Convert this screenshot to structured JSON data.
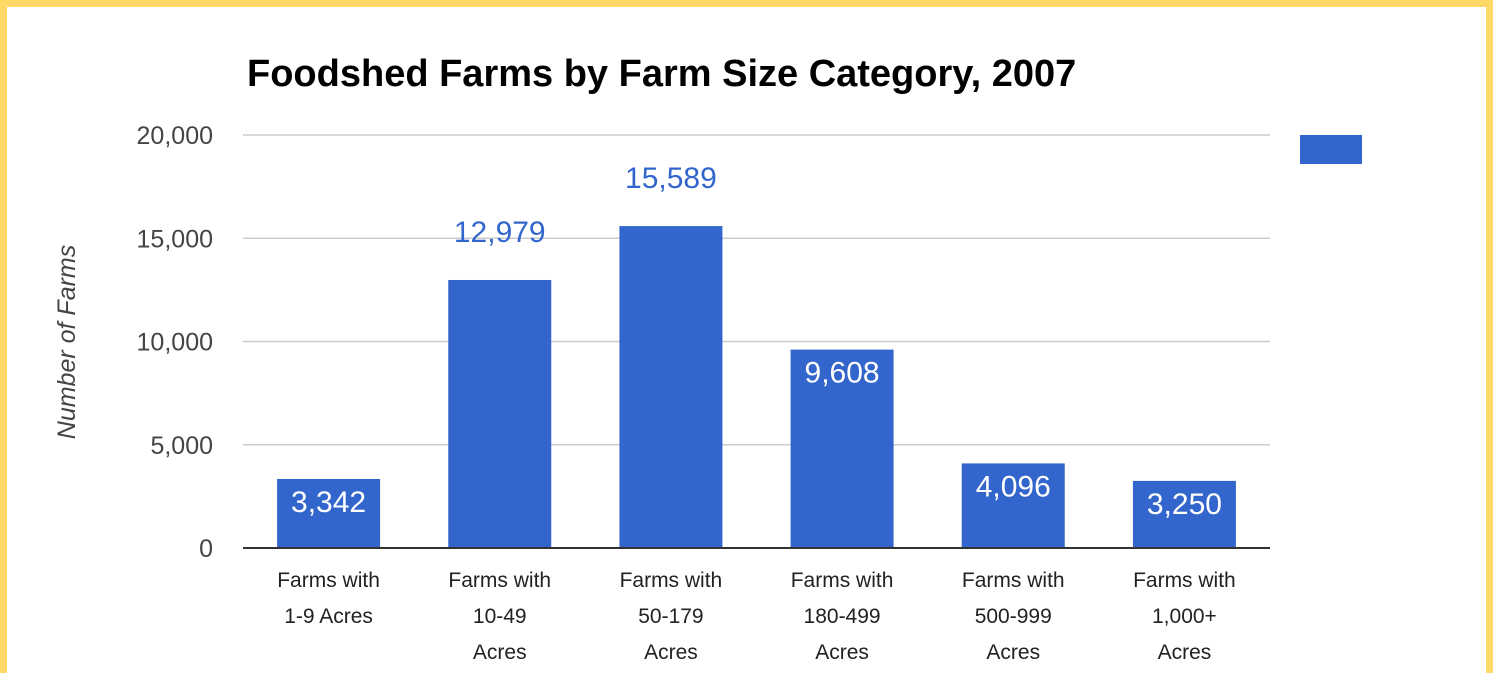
{
  "chart_data": {
    "type": "bar",
    "title": "Foodshed Farms by Farm Size Category, 2007",
    "ylabel": "Number of Farms",
    "xlabel": "",
    "ylim": [
      0,
      20000
    ],
    "yticks": [
      {
        "value": 0,
        "label": "0"
      },
      {
        "value": 5000,
        "label": "5,000"
      },
      {
        "value": 10000,
        "label": "10,000"
      },
      {
        "value": 15000,
        "label": "15,000"
      },
      {
        "value": 20000,
        "label": "20,000"
      }
    ],
    "categories": [
      [
        "Farms with",
        "1-9 Acres"
      ],
      [
        "Farms with",
        "10-49",
        "Acres"
      ],
      [
        "Farms with",
        "50-179",
        "Acres"
      ],
      [
        "Farms with",
        "180-499",
        "Acres"
      ],
      [
        "Farms with",
        "500-999",
        "Acres"
      ],
      [
        "Farms with",
        "1,000+",
        "Acres"
      ]
    ],
    "series": [
      {
        "values": [
          3342,
          12979,
          15589,
          9608,
          4096,
          3250
        ],
        "data_labels": [
          "3,342",
          "12,979",
          "15,589",
          "9,608",
          "4,096",
          "3,250"
        ]
      }
    ],
    "grid": true,
    "legend": "right",
    "colors": {
      "bar": "#3366cc",
      "label_inside": "#ffffff",
      "label_outside": "#3366cc",
      "gridline": "#cccccc",
      "baseline": "#333333",
      "border": "#ffd966"
    }
  }
}
